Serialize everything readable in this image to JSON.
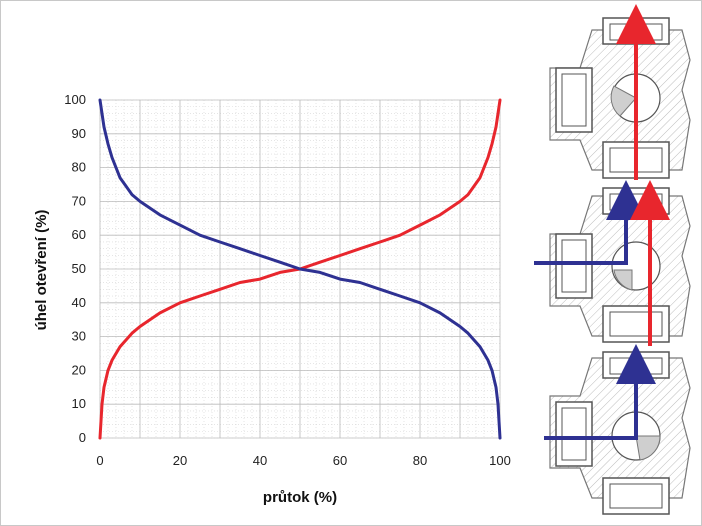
{
  "chart_data": {
    "type": "line",
    "title": "",
    "xlabel": "průtok (%)",
    "ylabel": "úhel otevření (%)",
    "xlim": [
      0,
      100
    ],
    "ylim": [
      0,
      100
    ],
    "x_ticks": [
      0,
      20,
      40,
      60,
      80,
      100
    ],
    "y_ticks": [
      0,
      10,
      20,
      30,
      40,
      50,
      60,
      70,
      80,
      90,
      100
    ],
    "grid": true,
    "legend": "none",
    "series": [
      {
        "color": "#e8262d",
        "x": [
          0,
          0.5,
          1,
          2,
          3,
          5,
          8,
          10,
          15,
          20,
          25,
          30,
          35,
          40,
          45,
          50,
          55,
          60,
          65,
          70,
          75,
          80,
          85,
          90,
          92,
          95,
          97,
          98,
          99,
          99.5,
          100
        ],
        "y": [
          0,
          10,
          15,
          20,
          23,
          27,
          31,
          33,
          37,
          40,
          42,
          44,
          46,
          47,
          49,
          50,
          52,
          54,
          56,
          58,
          60,
          63,
          66,
          70,
          72,
          77,
          83,
          87,
          92,
          96,
          100
        ]
      },
      {
        "color": "#2e3192",
        "x": [
          0,
          0.5,
          1,
          2,
          3,
          5,
          8,
          10,
          15,
          20,
          25,
          30,
          35,
          40,
          45,
          50,
          55,
          60,
          65,
          70,
          75,
          80,
          85,
          90,
          92,
          95,
          97,
          98,
          99,
          99.5,
          100
        ],
        "y": [
          100,
          96,
          92,
          87,
          83,
          77,
          72,
          70,
          66,
          63,
          60,
          58,
          56,
          54,
          52,
          50,
          49,
          47,
          46,
          44,
          42,
          40,
          37,
          33,
          31,
          27,
          23,
          20,
          15,
          10,
          0
        ]
      }
    ]
  },
  "valve_diagrams": [
    {
      "flow": "straight",
      "arrow_colors": [
        "#e8262d"
      ]
    },
    {
      "flow": "mixed",
      "arrow_colors": [
        "#e8262d",
        "#2e3192"
      ]
    },
    {
      "flow": "side",
      "arrow_colors": [
        "#2e3192"
      ]
    }
  ]
}
